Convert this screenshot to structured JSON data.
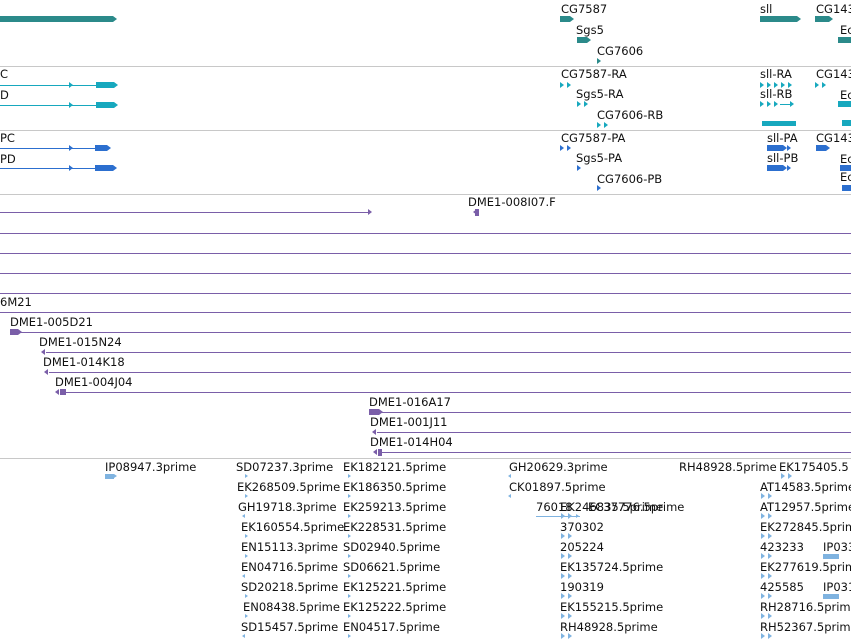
{
  "colors": {
    "gene": "#2b8a8a",
    "rna": "#17a8be",
    "protein": "#2c6fcf",
    "clone": "#7a5ea8",
    "est": "#7fb3e0",
    "separator": "#c8c8c8"
  },
  "gene_track": {
    "labels": [
      "CG7587",
      "Sgs5",
      "CG7606",
      "sll",
      "CG143"
    ],
    "sub_labels": [
      "Ec"
    ]
  },
  "transcript_track": {
    "labels": [
      "C",
      "D",
      "CG7587-RA",
      "Sgs5-RA",
      "CG7606-RB",
      "sll-RA",
      "sll-RB",
      "CG143"
    ],
    "sub_labels": [
      "Ec"
    ]
  },
  "protein_track": {
    "labels": [
      "PC",
      "PD",
      "CG7587-PA",
      "Sgs5-PA",
      "CG7606-PB",
      "sll-PA",
      "sll-PB",
      "CG143"
    ],
    "sub_labels": [
      "Ec",
      "Ec"
    ]
  },
  "clone_track": {
    "labels": [
      "DME1-008I07.F",
      "6M21",
      "DME1-005D21",
      "DME1-015N24",
      "DME1-014K18",
      "DME1-004J04",
      "DME1-016A17",
      "DME1-001J11",
      "DME1-014H04"
    ]
  },
  "est_track": {
    "labels": [
      "IP08947.3prime",
      "SD07237.3prime",
      "EK268509.5prime",
      "GH19718.3prime",
      "EK160554.5prime",
      "EN15113.3prime",
      "EN04716.5prime",
      "SD20218.5prime",
      "EN08438.5prime",
      "SD15457.5prime",
      "EK182121.5prime",
      "EK186350.5prime",
      "EK259213.5prime",
      "EK228531.5prime",
      "SD02940.5prime",
      "SD06621.5prime",
      "EK125221.5prime",
      "EK125222.5prime",
      "EN04517.5prime",
      "GH20629.3prime",
      "CK01897.5prime",
      "76018",
      "EC37776.5prime",
      "EK246835.5prime",
      "370302",
      "205224",
      "EK135724.5prime",
      "190319",
      "EK155215.5prime",
      "RH48928.5prime",
      "EK175405.5",
      "AT14583.5prime",
      "AT12957.5prime",
      "EK272845.5prime",
      "423233",
      "IP033",
      "EK277619.5prime",
      "425585",
      "IP031",
      "RH28716.5prime",
      "RH52367.5prime"
    ]
  }
}
